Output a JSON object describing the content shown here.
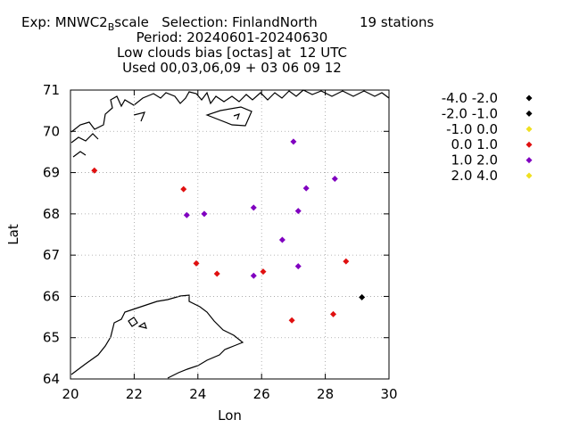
{
  "title": {
    "exp_prefix": "Exp: MNWC2",
    "exp_sub": "B",
    "exp_suffix": "scale",
    "selection": "Selection: FinlandNorth",
    "stations": "19 stations",
    "line2": "Period: 20240601-20240630",
    "line3": "Low clouds bias [octas] at  12 UTC",
    "line4": "Used 00,03,06,09 + 03 06 09 12"
  },
  "chart_data": {
    "type": "scatter",
    "xlabel": "Lon",
    "ylabel": "Lat",
    "xlim": [
      20,
      30
    ],
    "ylim": [
      64,
      71
    ],
    "xticks": [
      "20",
      "22",
      "24",
      "26",
      "28",
      "30"
    ],
    "yticks": [
      "64",
      "65",
      "66",
      "67",
      "68",
      "69",
      "70",
      "71"
    ],
    "grid": true,
    "legend_position": "right",
    "legend": [
      {
        "label": "-4.0 -2.0",
        "color": "#000000"
      },
      {
        "label": "-2.0 -1.0",
        "color": "#000000"
      },
      {
        "label": "-1.0 0.0",
        "color": "#f0e020"
      },
      {
        "label": "0.0 1.0",
        "color": "#e01010"
      },
      {
        "label": "1.0 2.0",
        "color": "#8000c0"
      },
      {
        "label": "2.0 4.0",
        "color": "#f0e020"
      }
    ],
    "points": [
      {
        "lon": 20.75,
        "lat": 69.05,
        "cls": 3
      },
      {
        "lon": 23.55,
        "lat": 68.6,
        "cls": 3
      },
      {
        "lon": 23.95,
        "lat": 66.8,
        "cls": 3
      },
      {
        "lon": 24.6,
        "lat": 66.55,
        "cls": 3
      },
      {
        "lon": 26.05,
        "lat": 66.6,
        "cls": 3
      },
      {
        "lon": 26.95,
        "lat": 65.42,
        "cls": 3
      },
      {
        "lon": 28.25,
        "lat": 65.57,
        "cls": 3
      },
      {
        "lon": 28.65,
        "lat": 66.85,
        "cls": 3
      },
      {
        "lon": 27.0,
        "lat": 69.75,
        "cls": 4
      },
      {
        "lon": 27.4,
        "lat": 68.62,
        "cls": 4
      },
      {
        "lon": 28.3,
        "lat": 68.85,
        "cls": 4
      },
      {
        "lon": 23.65,
        "lat": 67.97,
        "cls": 4
      },
      {
        "lon": 24.2,
        "lat": 68.0,
        "cls": 4
      },
      {
        "lon": 25.75,
        "lat": 68.15,
        "cls": 4
      },
      {
        "lon": 27.15,
        "lat": 68.07,
        "cls": 4
      },
      {
        "lon": 26.65,
        "lat": 67.37,
        "cls": 4
      },
      {
        "lon": 27.15,
        "lat": 66.73,
        "cls": 4
      },
      {
        "lon": 25.75,
        "lat": 66.5,
        "cls": 4
      },
      {
        "lon": 29.15,
        "lat": 65.98,
        "cls": 1
      }
    ]
  }
}
